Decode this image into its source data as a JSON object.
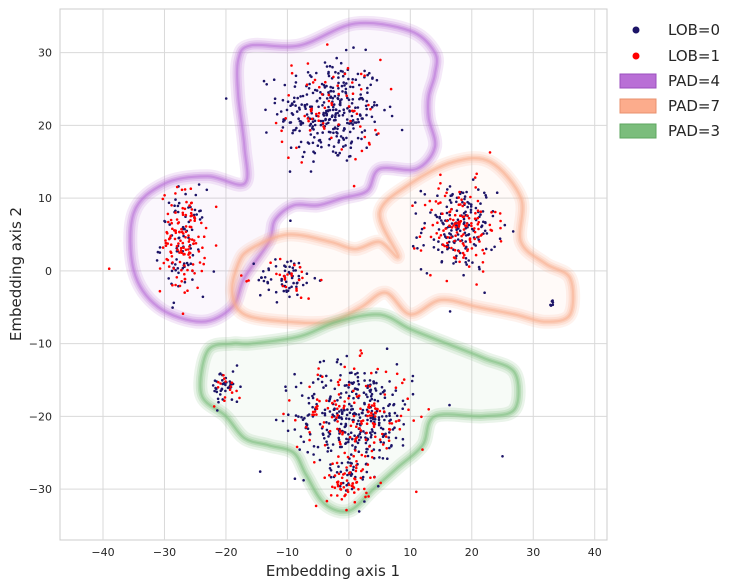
{
  "chart_data": {
    "type": "scatter",
    "title": "",
    "xlabel": "Embedding axis 1",
    "ylabel": "Embedding axis 2",
    "xlim": [
      -47,
      42
    ],
    "ylim": [
      -37,
      36
    ],
    "xticks": [
      -40,
      -30,
      -20,
      -10,
      0,
      10,
      20,
      30,
      40
    ],
    "yticks": [
      -30,
      -20,
      -10,
      0,
      10,
      20,
      30
    ],
    "grid": true,
    "legend_position": "outside-top-right",
    "series": [
      {
        "name": "LOB=0",
        "kind": "points",
        "color": "#1c1467"
      },
      {
        "name": "LOB=1",
        "kind": "points",
        "color": "#ff0000"
      },
      {
        "name": "PAD=4",
        "kind": "density-contour",
        "color": "#b96fd6"
      },
      {
        "name": "PAD=7",
        "kind": "density-contour",
        "color": "#f9ac8c"
      },
      {
        "name": "PAD=3",
        "kind": "density-contour",
        "color": "#7bbd7c"
      }
    ],
    "point_clusters": [
      {
        "region": "top-center",
        "center": [
          -3,
          22
        ],
        "spread": [
          7,
          6
        ],
        "n0": 320,
        "n1": 70
      },
      {
        "region": "left",
        "center": [
          -27,
          4
        ],
        "spread": [
          3,
          6
        ],
        "n0": 80,
        "n1": 130
      },
      {
        "region": "right",
        "center": [
          18,
          6
        ],
        "spread": [
          5,
          5
        ],
        "n0": 170,
        "n1": 130
      },
      {
        "region": "middle-left",
        "center": [
          -10,
          -1
        ],
        "spread": [
          4,
          2.5
        ],
        "n0": 60,
        "n1": 25
      },
      {
        "region": "bottom",
        "center": [
          1,
          -20
        ],
        "spread": [
          8,
          6
        ],
        "n0": 340,
        "n1": 150
      },
      {
        "region": "bottom-tail",
        "center": [
          0,
          -29
        ],
        "spread": [
          3,
          3
        ],
        "n0": 20,
        "n1": 60
      },
      {
        "region": "bottom-left",
        "center": [
          -20,
          -16
        ],
        "spread": [
          2,
          2
        ],
        "n0": 40,
        "n1": 15
      },
      {
        "region": "far-right",
        "center": [
          33,
          -4.5
        ],
        "spread": [
          0.3,
          0.4
        ],
        "n0": 6,
        "n1": 0
      }
    ],
    "outlier_points": [
      [
        -39,
        0.3
      ],
      [
        25,
        -25.5
      ]
    ],
    "contour_regions": [
      {
        "name": "PAD=4",
        "points": [
          [
            -16,
            31
          ],
          [
            -8,
            31
          ],
          [
            1,
            34
          ],
          [
            10,
            33
          ],
          [
            14,
            30
          ],
          [
            14,
            27
          ],
          [
            13,
            24
          ],
          [
            13,
            21
          ],
          [
            14,
            17
          ],
          [
            11,
            14
          ],
          [
            5,
            14
          ],
          [
            3,
            11
          ],
          [
            -1,
            10
          ],
          [
            -5,
            9
          ],
          [
            -9,
            9
          ],
          [
            -12,
            7
          ],
          [
            -13,
            4
          ],
          [
            -17,
            -1
          ],
          [
            -19,
            -5
          ],
          [
            -24,
            -7
          ],
          [
            -31,
            -5
          ],
          [
            -35,
            0
          ],
          [
            -35,
            8
          ],
          [
            -30,
            12
          ],
          [
            -23,
            13
          ],
          [
            -17,
            12
          ],
          [
            -17,
            17
          ],
          [
            -18,
            24
          ],
          [
            -18,
            29
          ]
        ]
      },
      {
        "name": "PAD=7",
        "points": [
          [
            -16,
            3
          ],
          [
            -10,
            5
          ],
          [
            -3,
            4
          ],
          [
            1,
            3
          ],
          [
            5,
            4
          ],
          [
            8,
            2
          ],
          [
            5,
            8
          ],
          [
            10,
            12
          ],
          [
            17,
            15
          ],
          [
            23,
            15
          ],
          [
            28,
            10
          ],
          [
            28,
            4
          ],
          [
            32,
            1
          ],
          [
            36,
            -1
          ],
          [
            36,
            -6
          ],
          [
            32,
            -7
          ],
          [
            27,
            -6
          ],
          [
            21,
            -5
          ],
          [
            15,
            -4
          ],
          [
            10,
            -6
          ],
          [
            6,
            -3
          ],
          [
            2,
            -5
          ],
          [
            -3,
            -7
          ],
          [
            -10,
            -7
          ],
          [
            -17,
            -6
          ],
          [
            -19,
            -3
          ],
          [
            -18,
            1
          ]
        ]
      },
      {
        "name": "PAD=3",
        "points": [
          [
            -16,
            -10
          ],
          [
            -8,
            -9
          ],
          [
            -2,
            -7
          ],
          [
            5,
            -6
          ],
          [
            10,
            -8
          ],
          [
            16,
            -10
          ],
          [
            22,
            -12
          ],
          [
            27,
            -14
          ],
          [
            27,
            -19
          ],
          [
            22,
            -20
          ],
          [
            14,
            -20
          ],
          [
            12,
            -24
          ],
          [
            8,
            -27
          ],
          [
            4,
            -30
          ],
          [
            0,
            -33
          ],
          [
            -4,
            -32
          ],
          [
            -7,
            -28
          ],
          [
            -9,
            -25
          ],
          [
            -13,
            -24
          ],
          [
            -17,
            -23
          ],
          [
            -20,
            -20
          ],
          [
            -24,
            -17
          ],
          [
            -23,
            -11
          ],
          [
            -19,
            -10
          ]
        ]
      }
    ]
  }
}
